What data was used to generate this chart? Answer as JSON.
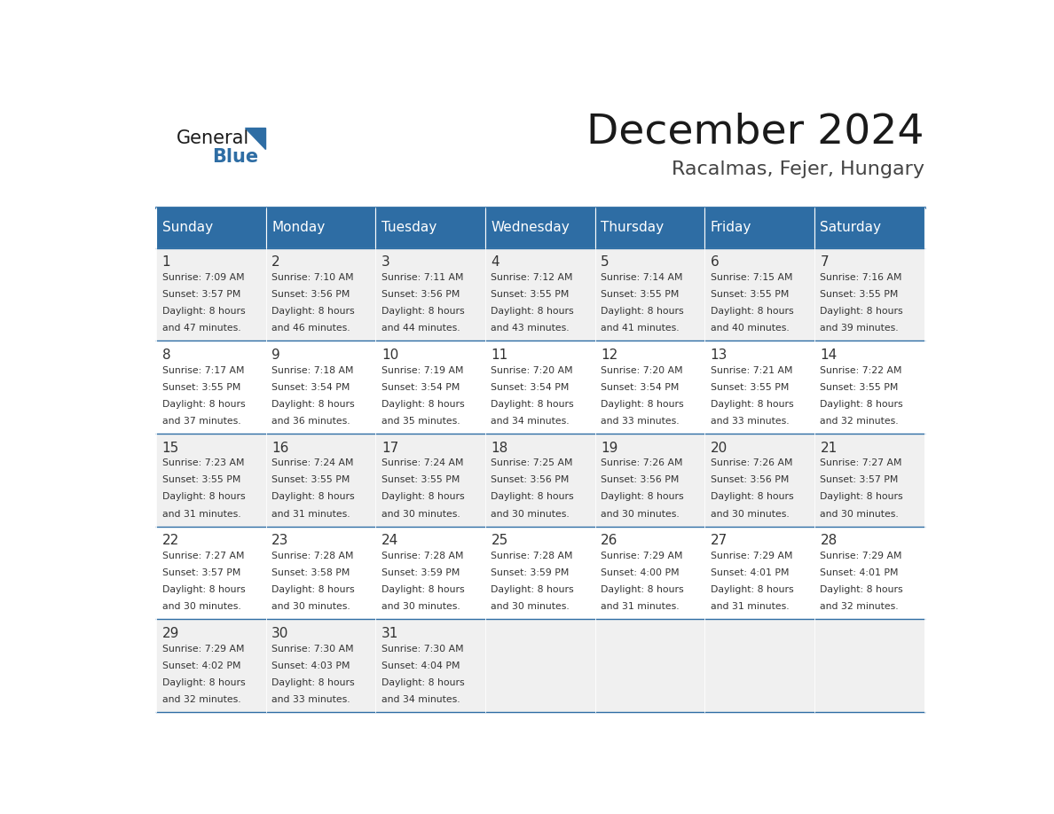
{
  "title": "December 2024",
  "subtitle": "Racalmas, Fejer, Hungary",
  "days_of_week": [
    "Sunday",
    "Monday",
    "Tuesday",
    "Wednesday",
    "Thursday",
    "Friday",
    "Saturday"
  ],
  "header_bg": "#2E6DA4",
  "header_text": "#FFFFFF",
  "cell_bg_odd": "#F0F0F0",
  "cell_bg_even": "#FFFFFF",
  "cell_text": "#333333",
  "day_num_color": "#333333",
  "border_color": "#2E6DA4",
  "title_color": "#1a1a1a",
  "subtitle_color": "#444444",
  "logo_general_color": "#1a1a1a",
  "logo_blue_color": "#2E6DA4",
  "days": [
    {
      "date": 1,
      "dow": 0,
      "sunrise": "7:09 AM",
      "sunset": "3:57 PM",
      "daylight_extra": "47 minutes."
    },
    {
      "date": 2,
      "dow": 1,
      "sunrise": "7:10 AM",
      "sunset": "3:56 PM",
      "daylight_extra": "46 minutes."
    },
    {
      "date": 3,
      "dow": 2,
      "sunrise": "7:11 AM",
      "sunset": "3:56 PM",
      "daylight_extra": "44 minutes."
    },
    {
      "date": 4,
      "dow": 3,
      "sunrise": "7:12 AM",
      "sunset": "3:55 PM",
      "daylight_extra": "43 minutes."
    },
    {
      "date": 5,
      "dow": 4,
      "sunrise": "7:14 AM",
      "sunset": "3:55 PM",
      "daylight_extra": "41 minutes."
    },
    {
      "date": 6,
      "dow": 5,
      "sunrise": "7:15 AM",
      "sunset": "3:55 PM",
      "daylight_extra": "40 minutes."
    },
    {
      "date": 7,
      "dow": 6,
      "sunrise": "7:16 AM",
      "sunset": "3:55 PM",
      "daylight_extra": "39 minutes."
    },
    {
      "date": 8,
      "dow": 0,
      "sunrise": "7:17 AM",
      "sunset": "3:55 PM",
      "daylight_extra": "37 minutes."
    },
    {
      "date": 9,
      "dow": 1,
      "sunrise": "7:18 AM",
      "sunset": "3:54 PM",
      "daylight_extra": "36 minutes."
    },
    {
      "date": 10,
      "dow": 2,
      "sunrise": "7:19 AM",
      "sunset": "3:54 PM",
      "daylight_extra": "35 minutes."
    },
    {
      "date": 11,
      "dow": 3,
      "sunrise": "7:20 AM",
      "sunset": "3:54 PM",
      "daylight_extra": "34 minutes."
    },
    {
      "date": 12,
      "dow": 4,
      "sunrise": "7:20 AM",
      "sunset": "3:54 PM",
      "daylight_extra": "33 minutes."
    },
    {
      "date": 13,
      "dow": 5,
      "sunrise": "7:21 AM",
      "sunset": "3:55 PM",
      "daylight_extra": "33 minutes."
    },
    {
      "date": 14,
      "dow": 6,
      "sunrise": "7:22 AM",
      "sunset": "3:55 PM",
      "daylight_extra": "32 minutes."
    },
    {
      "date": 15,
      "dow": 0,
      "sunrise": "7:23 AM",
      "sunset": "3:55 PM",
      "daylight_extra": "31 minutes."
    },
    {
      "date": 16,
      "dow": 1,
      "sunrise": "7:24 AM",
      "sunset": "3:55 PM",
      "daylight_extra": "31 minutes."
    },
    {
      "date": 17,
      "dow": 2,
      "sunrise": "7:24 AM",
      "sunset": "3:55 PM",
      "daylight_extra": "30 minutes."
    },
    {
      "date": 18,
      "dow": 3,
      "sunrise": "7:25 AM",
      "sunset": "3:56 PM",
      "daylight_extra": "30 minutes."
    },
    {
      "date": 19,
      "dow": 4,
      "sunrise": "7:26 AM",
      "sunset": "3:56 PM",
      "daylight_extra": "30 minutes."
    },
    {
      "date": 20,
      "dow": 5,
      "sunrise": "7:26 AM",
      "sunset": "3:56 PM",
      "daylight_extra": "30 minutes."
    },
    {
      "date": 21,
      "dow": 6,
      "sunrise": "7:27 AM",
      "sunset": "3:57 PM",
      "daylight_extra": "30 minutes."
    },
    {
      "date": 22,
      "dow": 0,
      "sunrise": "7:27 AM",
      "sunset": "3:57 PM",
      "daylight_extra": "30 minutes."
    },
    {
      "date": 23,
      "dow": 1,
      "sunrise": "7:28 AM",
      "sunset": "3:58 PM",
      "daylight_extra": "30 minutes."
    },
    {
      "date": 24,
      "dow": 2,
      "sunrise": "7:28 AM",
      "sunset": "3:59 PM",
      "daylight_extra": "30 minutes."
    },
    {
      "date": 25,
      "dow": 3,
      "sunrise": "7:28 AM",
      "sunset": "3:59 PM",
      "daylight_extra": "30 minutes."
    },
    {
      "date": 26,
      "dow": 4,
      "sunrise": "7:29 AM",
      "sunset": "4:00 PM",
      "daylight_extra": "31 minutes."
    },
    {
      "date": 27,
      "dow": 5,
      "sunrise": "7:29 AM",
      "sunset": "4:01 PM",
      "daylight_extra": "31 minutes."
    },
    {
      "date": 28,
      "dow": 6,
      "sunrise": "7:29 AM",
      "sunset": "4:01 PM",
      "daylight_extra": "32 minutes."
    },
    {
      "date": 29,
      "dow": 0,
      "sunrise": "7:29 AM",
      "sunset": "4:02 PM",
      "daylight_extra": "32 minutes."
    },
    {
      "date": 30,
      "dow": 1,
      "sunrise": "7:30 AM",
      "sunset": "4:03 PM",
      "daylight_extra": "33 minutes."
    },
    {
      "date": 31,
      "dow": 2,
      "sunrise": "7:30 AM",
      "sunset": "4:04 PM",
      "daylight_extra": "34 minutes."
    }
  ]
}
